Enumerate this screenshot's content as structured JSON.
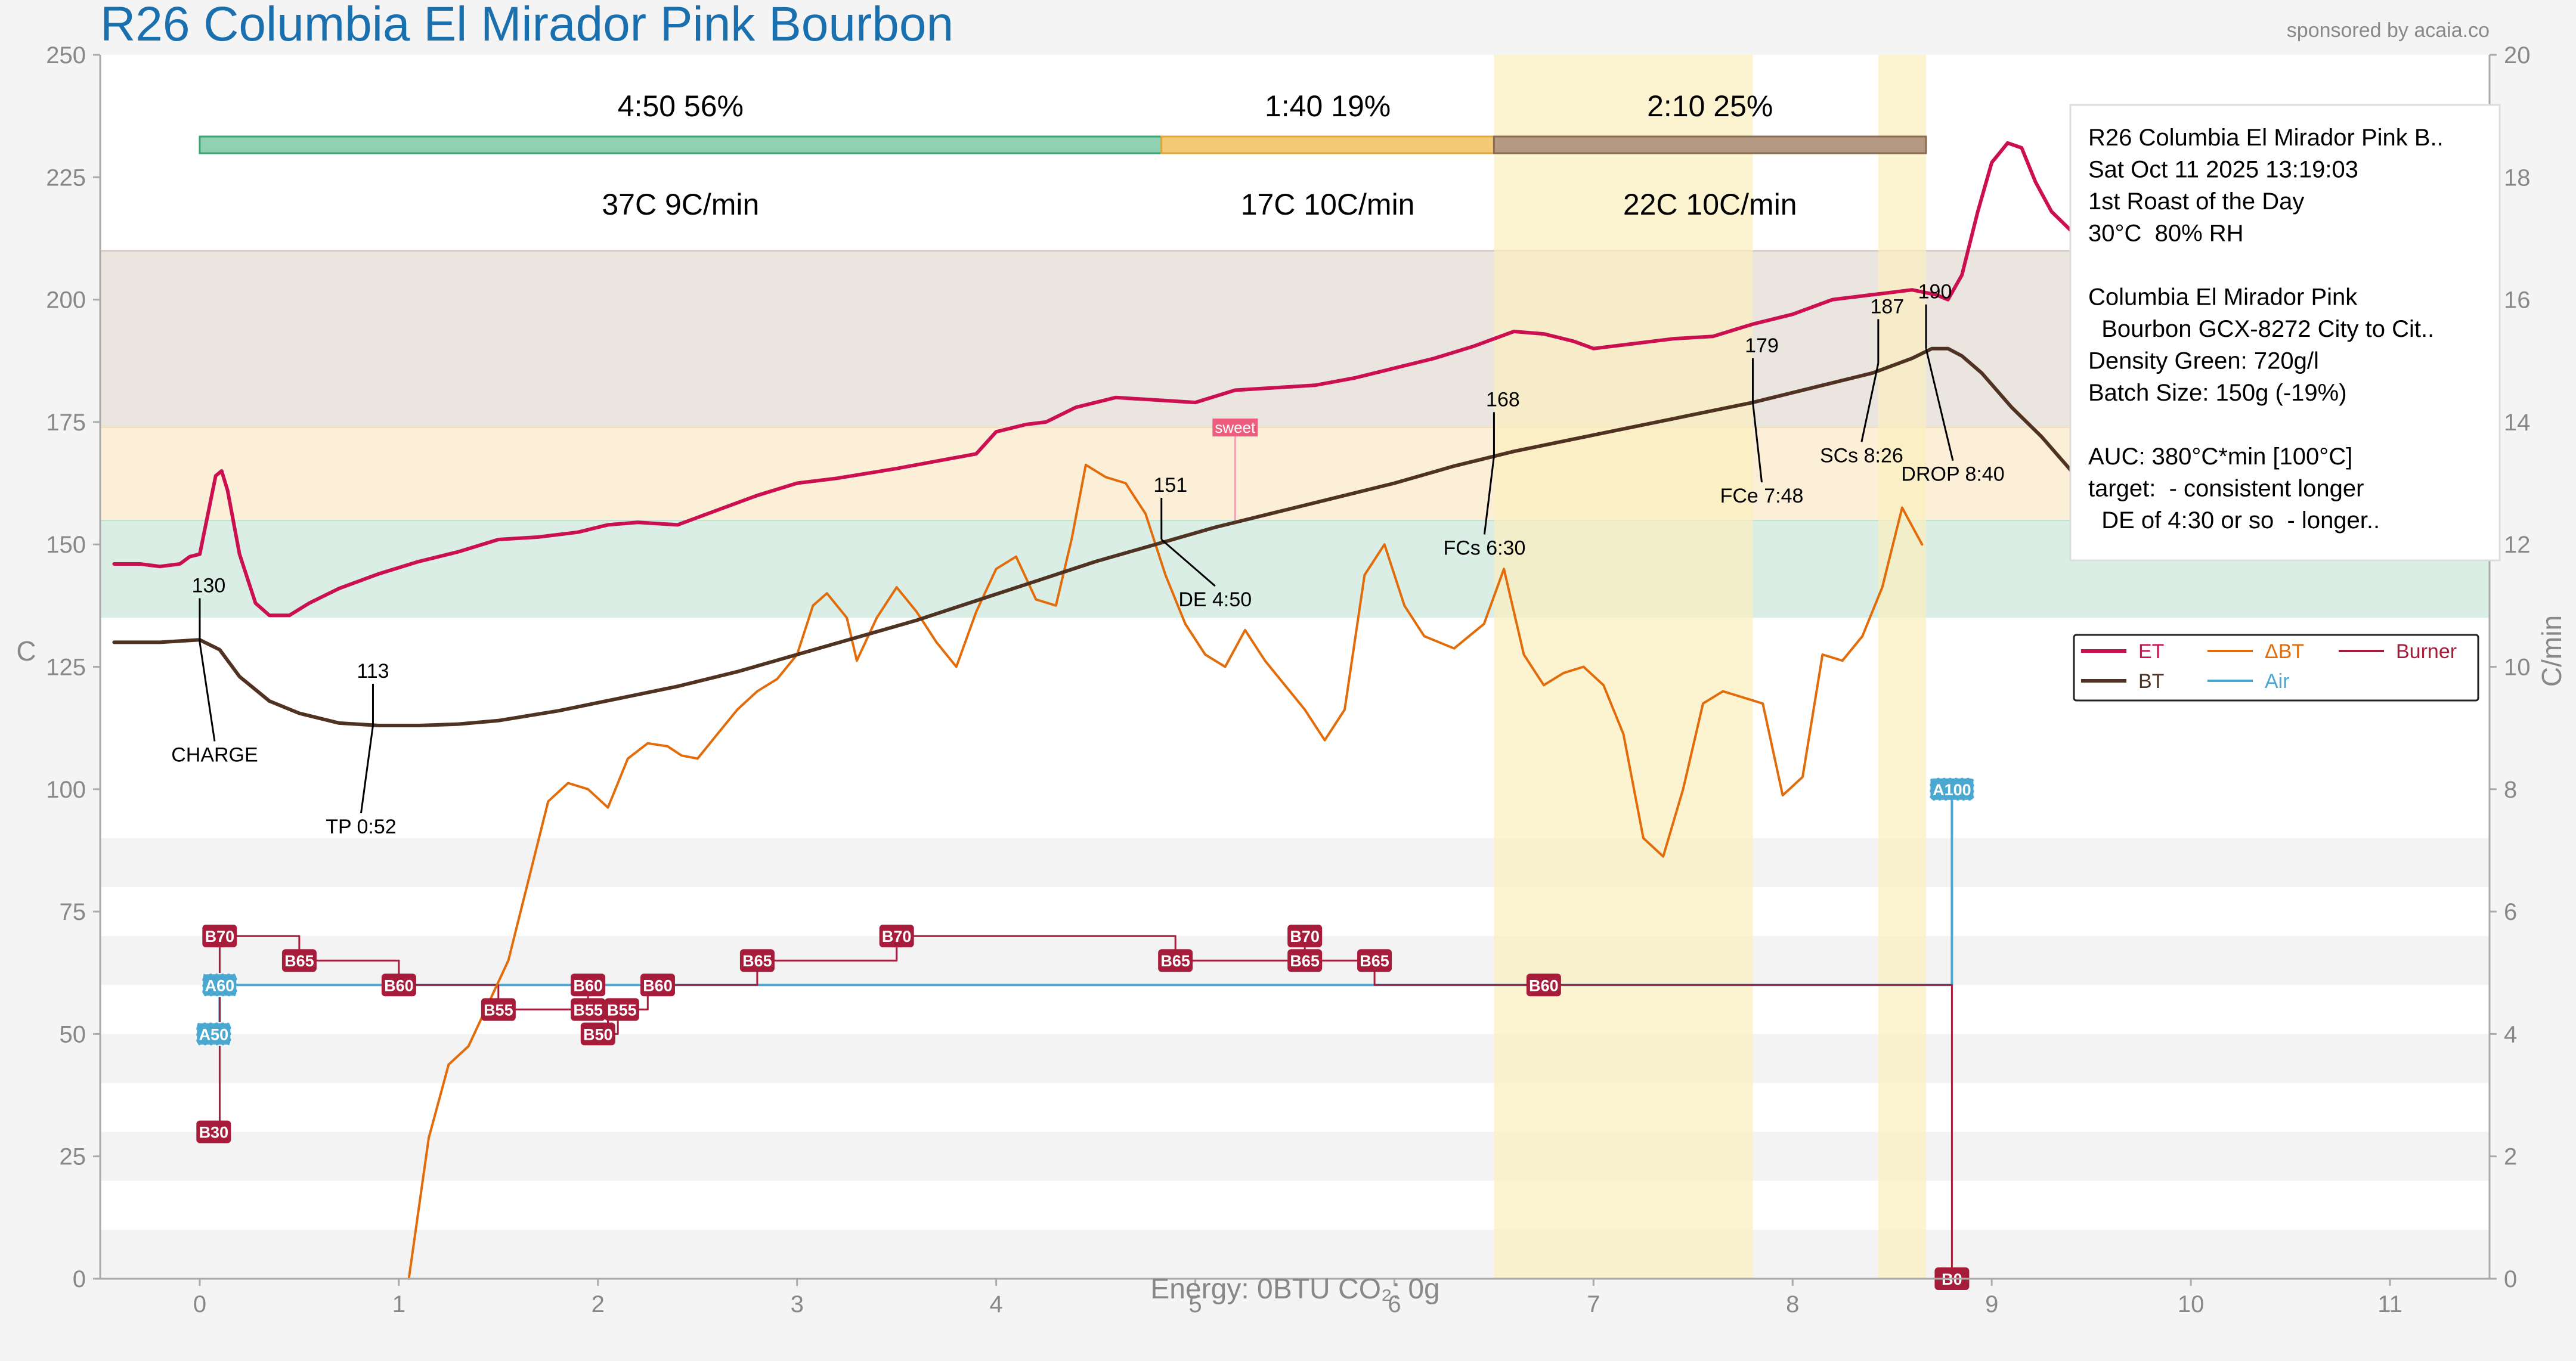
{
  "header": {
    "title": "R26 Columbia El Mirador Pink Bourbon",
    "sponsor": "sponsored by acaia.co"
  },
  "footer": {
    "energy": "Energy: 0BTU   CO₂: 0g"
  },
  "colors": {
    "et": "#cc0f50",
    "bt": "#4f3222",
    "delta_bt": "#e36c0a",
    "air": "#4aa8d0",
    "burner": "#a61c3a",
    "title": "#1a6faf",
    "drying_band": "#8fd1b1",
    "maillard_band": "#f4ca76",
    "finishing_band": "#b59a83",
    "bg_green": "#daeee5",
    "bg_orange": "#fcefd8",
    "bg_brown": "#ebe5e0",
    "fc_highlight": "#fbefbf"
  },
  "chart_data": {
    "type": "line",
    "xlabel": "",
    "ylabel": "C",
    "ylabel_right": "C/min",
    "xlim": [
      -0.5,
      11.5
    ],
    "ylim": [
      0,
      250
    ],
    "ylim_right": [
      0,
      20
    ],
    "x_ticks": [
      "0",
      "1",
      "2",
      "3",
      "4",
      "5",
      "6",
      "7",
      "8",
      "9",
      "10",
      "11"
    ],
    "y_ticks": [
      "0",
      "25",
      "50",
      "75",
      "100",
      "125",
      "150",
      "175",
      "200",
      "225",
      "250"
    ],
    "y_ticks_right": [
      "0",
      "2",
      "4",
      "6",
      "8",
      "10",
      "12",
      "14",
      "16",
      "18",
      "20"
    ],
    "background_bands": [
      {
        "name": "drying",
        "from": 135,
        "to": 155
      },
      {
        "name": "maillard",
        "from": 155,
        "to": 174
      },
      {
        "name": "finishing",
        "from": 174,
        "to": 210
      }
    ],
    "highlight_regions": [
      {
        "from": 6.5,
        "to": 7.8
      },
      {
        "from": 8.43,
        "to": 8.67
      }
    ],
    "phases": [
      {
        "start": 0,
        "end": 4.83,
        "time_pct": "4:50  56%",
        "temp_rate": "37C  9C/min"
      },
      {
        "start": 4.83,
        "end": 6.5,
        "time_pct": "1:40  19%",
        "temp_rate": "17C  10C/min"
      },
      {
        "start": 6.5,
        "end": 8.67,
        "time_pct": "2:10  25%",
        "temp_rate": "22C  10C/min"
      }
    ],
    "series": [
      {
        "name": "ET",
        "axis": "left",
        "points": [
          [
            -0.43,
            146
          ],
          [
            -0.3,
            146
          ],
          [
            -0.2,
            145.5
          ],
          [
            -0.1,
            146
          ],
          [
            -0.05,
            147.5
          ],
          [
            0.0,
            148
          ],
          [
            0.05,
            158
          ],
          [
            0.08,
            164
          ],
          [
            0.11,
            165
          ],
          [
            0.14,
            161
          ],
          [
            0.2,
            148
          ],
          [
            0.28,
            138
          ],
          [
            0.35,
            135.5
          ],
          [
            0.45,
            135.5
          ],
          [
            0.55,
            138
          ],
          [
            0.7,
            141
          ],
          [
            0.9,
            144
          ],
          [
            1.1,
            146.5
          ],
          [
            1.3,
            148.5
          ],
          [
            1.5,
            151
          ],
          [
            1.7,
            151.5
          ],
          [
            1.9,
            152.5
          ],
          [
            2.05,
            154
          ],
          [
            2.2,
            154.5
          ],
          [
            2.4,
            154
          ],
          [
            2.6,
            157
          ],
          [
            2.8,
            160
          ],
          [
            3.0,
            162.5
          ],
          [
            3.2,
            163.5
          ],
          [
            3.5,
            165.5
          ],
          [
            3.7,
            167
          ],
          [
            3.9,
            168.5
          ],
          [
            4.0,
            173
          ],
          [
            4.15,
            174.5
          ],
          [
            4.25,
            175
          ],
          [
            4.4,
            178
          ],
          [
            4.6,
            180
          ],
          [
            4.8,
            179.5
          ],
          [
            5.0,
            179
          ],
          [
            5.2,
            181.5
          ],
          [
            5.4,
            182
          ],
          [
            5.6,
            182.5
          ],
          [
            5.8,
            184
          ],
          [
            6.0,
            186
          ],
          [
            6.2,
            188
          ],
          [
            6.4,
            190.5
          ],
          [
            6.6,
            193.5
          ],
          [
            6.75,
            193
          ],
          [
            6.9,
            191.5
          ],
          [
            7.0,
            190
          ],
          [
            7.2,
            191
          ],
          [
            7.4,
            192
          ],
          [
            7.6,
            192.5
          ],
          [
            7.8,
            195
          ],
          [
            8.0,
            197
          ],
          [
            8.2,
            200
          ],
          [
            8.4,
            201
          ],
          [
            8.6,
            202
          ],
          [
            8.72,
            201
          ],
          [
            8.78,
            200
          ],
          [
            8.85,
            205
          ],
          [
            8.93,
            218
          ],
          [
            9.0,
            228
          ],
          [
            9.08,
            232
          ],
          [
            9.15,
            231
          ],
          [
            9.22,
            224
          ],
          [
            9.3,
            218
          ],
          [
            9.4,
            214
          ]
        ]
      },
      {
        "name": "BT",
        "axis": "left",
        "points": [
          [
            -0.43,
            130
          ],
          [
            -0.2,
            130
          ],
          [
            0.0,
            130.5
          ],
          [
            0.1,
            128.5
          ],
          [
            0.2,
            123
          ],
          [
            0.35,
            118
          ],
          [
            0.5,
            115.5
          ],
          [
            0.7,
            113.5
          ],
          [
            0.9,
            113
          ],
          [
            1.1,
            113
          ],
          [
            1.3,
            113.3
          ],
          [
            1.5,
            114
          ],
          [
            1.8,
            116
          ],
          [
            2.1,
            118.5
          ],
          [
            2.4,
            121
          ],
          [
            2.7,
            124
          ],
          [
            3.0,
            127.5
          ],
          [
            3.3,
            131
          ],
          [
            3.6,
            134.5
          ],
          [
            3.9,
            138.5
          ],
          [
            4.2,
            142.5
          ],
          [
            4.5,
            146.5
          ],
          [
            4.8,
            150
          ],
          [
            5.1,
            153.5
          ],
          [
            5.4,
            156.5
          ],
          [
            5.7,
            159.5
          ],
          [
            6.0,
            162.5
          ],
          [
            6.3,
            166
          ],
          [
            6.6,
            169
          ],
          [
            6.9,
            171.5
          ],
          [
            7.2,
            174
          ],
          [
            7.5,
            176.5
          ],
          [
            7.8,
            179
          ],
          [
            8.1,
            182
          ],
          [
            8.4,
            185
          ],
          [
            8.6,
            188
          ],
          [
            8.7,
            190
          ],
          [
            8.78,
            190
          ],
          [
            8.85,
            188.5
          ],
          [
            8.95,
            185
          ],
          [
            9.1,
            178
          ],
          [
            9.25,
            172
          ],
          [
            9.4,
            165
          ]
        ]
      },
      {
        "name": "ΔBT",
        "axis": "right",
        "points": [
          [
            1.05,
            0
          ],
          [
            1.15,
            2.3
          ],
          [
            1.25,
            3.5
          ],
          [
            1.35,
            3.8
          ],
          [
            1.45,
            4.5
          ],
          [
            1.55,
            5.2
          ],
          [
            1.65,
            6.5
          ],
          [
            1.75,
            7.8
          ],
          [
            1.85,
            8.1
          ],
          [
            1.95,
            8.0
          ],
          [
            2.05,
            7.7
          ],
          [
            2.15,
            8.5
          ],
          [
            2.25,
            8.75
          ],
          [
            2.35,
            8.7
          ],
          [
            2.42,
            8.55
          ],
          [
            2.5,
            8.5
          ],
          [
            2.6,
            8.9
          ],
          [
            2.7,
            9.3
          ],
          [
            2.8,
            9.6
          ],
          [
            2.9,
            9.8
          ],
          [
            3.0,
            10.2
          ],
          [
            3.08,
            11.0
          ],
          [
            3.15,
            11.2
          ],
          [
            3.25,
            10.8
          ],
          [
            3.3,
            10.1
          ],
          [
            3.4,
            10.8
          ],
          [
            3.5,
            11.3
          ],
          [
            3.6,
            10.9
          ],
          [
            3.7,
            10.4
          ],
          [
            3.8,
            10.0
          ],
          [
            3.9,
            10.9
          ],
          [
            4.0,
            11.6
          ],
          [
            4.1,
            11.8
          ],
          [
            4.2,
            11.1
          ],
          [
            4.3,
            11.0
          ],
          [
            4.38,
            12.1
          ],
          [
            4.45,
            13.3
          ],
          [
            4.55,
            13.1
          ],
          [
            4.65,
            13.0
          ],
          [
            4.75,
            12.5
          ],
          [
            4.85,
            11.5
          ],
          [
            4.95,
            10.7
          ],
          [
            5.05,
            10.2
          ],
          [
            5.15,
            10.0
          ],
          [
            5.25,
            10.6
          ],
          [
            5.35,
            10.1
          ],
          [
            5.45,
            9.7
          ],
          [
            5.55,
            9.3
          ],
          [
            5.65,
            8.8
          ],
          [
            5.75,
            9.3
          ],
          [
            5.85,
            11.5
          ],
          [
            5.95,
            12.0
          ],
          [
            6.05,
            11.0
          ],
          [
            6.15,
            10.5
          ],
          [
            6.3,
            10.3
          ],
          [
            6.45,
            10.7
          ],
          [
            6.55,
            11.6
          ],
          [
            6.65,
            10.2
          ],
          [
            6.75,
            9.7
          ],
          [
            6.85,
            9.9
          ],
          [
            6.95,
            10.0
          ],
          [
            7.05,
            9.7
          ],
          [
            7.15,
            8.9
          ],
          [
            7.25,
            7.2
          ],
          [
            7.35,
            6.9
          ],
          [
            7.45,
            8.0
          ],
          [
            7.55,
            9.4
          ],
          [
            7.65,
            9.6
          ],
          [
            7.75,
            9.5
          ],
          [
            7.85,
            9.4
          ],
          [
            7.95,
            7.9
          ],
          [
            8.05,
            8.2
          ],
          [
            8.15,
            10.2
          ],
          [
            8.25,
            10.1
          ],
          [
            8.35,
            10.5
          ],
          [
            8.45,
            11.3
          ],
          [
            8.55,
            12.6
          ],
          [
            8.65,
            12.0
          ]
        ]
      },
      {
        "name": "Burner",
        "axis": "left",
        "points": [
          [
            0.1,
            30
          ],
          [
            0.1,
            70
          ],
          [
            0.5,
            70
          ],
          [
            0.5,
            65
          ],
          [
            1.0,
            65
          ],
          [
            1.0,
            60
          ],
          [
            1.5,
            60
          ],
          [
            1.5,
            55
          ],
          [
            1.95,
            55
          ],
          [
            1.95,
            60
          ],
          [
            1.95,
            55
          ],
          [
            2.05,
            55
          ],
          [
            2.05,
            50
          ],
          [
            2.1,
            50
          ],
          [
            2.1,
            55
          ],
          [
            2.25,
            55
          ],
          [
            2.25,
            60
          ],
          [
            2.8,
            60
          ],
          [
            2.8,
            65
          ],
          [
            3.5,
            65
          ],
          [
            3.5,
            70
          ],
          [
            4.9,
            70
          ],
          [
            4.9,
            65
          ],
          [
            5.55,
            65
          ],
          [
            5.55,
            70
          ],
          [
            5.55,
            65
          ],
          [
            5.9,
            65
          ],
          [
            5.9,
            60
          ],
          [
            8.8,
            60
          ],
          [
            8.8,
            0
          ]
        ]
      },
      {
        "name": "Air",
        "axis": "left",
        "points": [
          [
            0.1,
            50
          ],
          [
            0.1,
            60
          ],
          [
            8.8,
            60
          ],
          [
            8.8,
            100
          ]
        ]
      }
    ],
    "annotations": [
      {
        "label": "CHARGE",
        "value": "130",
        "x": 0.0,
        "y": 130
      },
      {
        "label": "TP 0:52",
        "value": "113",
        "x": 0.87,
        "y": 113
      },
      {
        "label": "DE 4:50",
        "value": "151",
        "x": 4.83,
        "y": 151
      },
      {
        "label": "FCs 6:30",
        "value": "168",
        "x": 6.5,
        "y": 168
      },
      {
        "label": "FCe 7:48",
        "value": "179",
        "x": 7.8,
        "y": 179
      },
      {
        "label": "SCs 8:26",
        "value": "187",
        "x": 8.43,
        "y": 187
      },
      {
        "label": "DROP 8:40",
        "value": "190",
        "x": 8.67,
        "y": 190
      }
    ],
    "sweet_marker": {
      "label": "sweet",
      "x": 5.2,
      "y": 174
    },
    "event_tags": [
      {
        "text": "B30",
        "x": 0.07,
        "y": 30,
        "kind": "burner"
      },
      {
        "text": "A50",
        "x": 0.07,
        "y": 50,
        "kind": "air"
      },
      {
        "text": "A60",
        "x": 0.1,
        "y": 60,
        "kind": "air"
      },
      {
        "text": "B70",
        "x": 0.1,
        "y": 70,
        "kind": "burner"
      },
      {
        "text": "B65",
        "x": 0.5,
        "y": 65,
        "kind": "burner"
      },
      {
        "text": "B60",
        "x": 1.0,
        "y": 60,
        "kind": "burner"
      },
      {
        "text": "B55",
        "x": 1.5,
        "y": 55,
        "kind": "burner"
      },
      {
        "text": "B60",
        "x": 1.95,
        "y": 60,
        "kind": "burner"
      },
      {
        "text": "B55",
        "x": 1.95,
        "y": 55,
        "kind": "burner"
      },
      {
        "text": "B50",
        "x": 2.0,
        "y": 50,
        "kind": "burner"
      },
      {
        "text": "B55",
        "x": 2.12,
        "y": 55,
        "kind": "burner"
      },
      {
        "text": "B60",
        "x": 2.3,
        "y": 60,
        "kind": "burner"
      },
      {
        "text": "B65",
        "x": 2.8,
        "y": 65,
        "kind": "burner"
      },
      {
        "text": "B70",
        "x": 3.5,
        "y": 70,
        "kind": "burner"
      },
      {
        "text": "B65",
        "x": 4.9,
        "y": 65,
        "kind": "burner"
      },
      {
        "text": "B70",
        "x": 5.55,
        "y": 70,
        "kind": "burner"
      },
      {
        "text": "B65",
        "x": 5.55,
        "y": 65,
        "kind": "burner"
      },
      {
        "text": "B65",
        "x": 5.9,
        "y": 65,
        "kind": "burner"
      },
      {
        "text": "B60",
        "x": 6.75,
        "y": 60,
        "kind": "burner"
      },
      {
        "text": "A100",
        "x": 8.8,
        "y": 100,
        "kind": "air"
      },
      {
        "text": "B0",
        "x": 8.8,
        "y": 0,
        "kind": "burner"
      }
    ],
    "legend": {
      "placement": "right",
      "entries": [
        {
          "name": "ET",
          "color": "#cc0f50"
        },
        {
          "name": "ΔBT",
          "color": "#e36c0a"
        },
        {
          "name": "Burner",
          "color": "#a61c3a"
        },
        {
          "name": "BT",
          "color": "#4f3222"
        },
        {
          "name": "Air",
          "color": "#4aa8d0"
        }
      ]
    },
    "info_box": {
      "placement": "top-right",
      "lines": [
        "R26 Columbia El Mirador Pink B..",
        "Sat Oct 11 2025 13:19:03",
        "1st Roast of the Day",
        "30°C  80% RH",
        "",
        "Columbia El Mirador Pink",
        "  Bourbon GCX-8272 City to Cit..",
        "Density Green: 720g/l",
        "Batch Size: 150g (-19%)",
        "",
        "AUC: 380°C*min [100°C]",
        "target:  - consistent longer",
        "  DE of 4:30 or so  - longer.."
      ]
    }
  }
}
